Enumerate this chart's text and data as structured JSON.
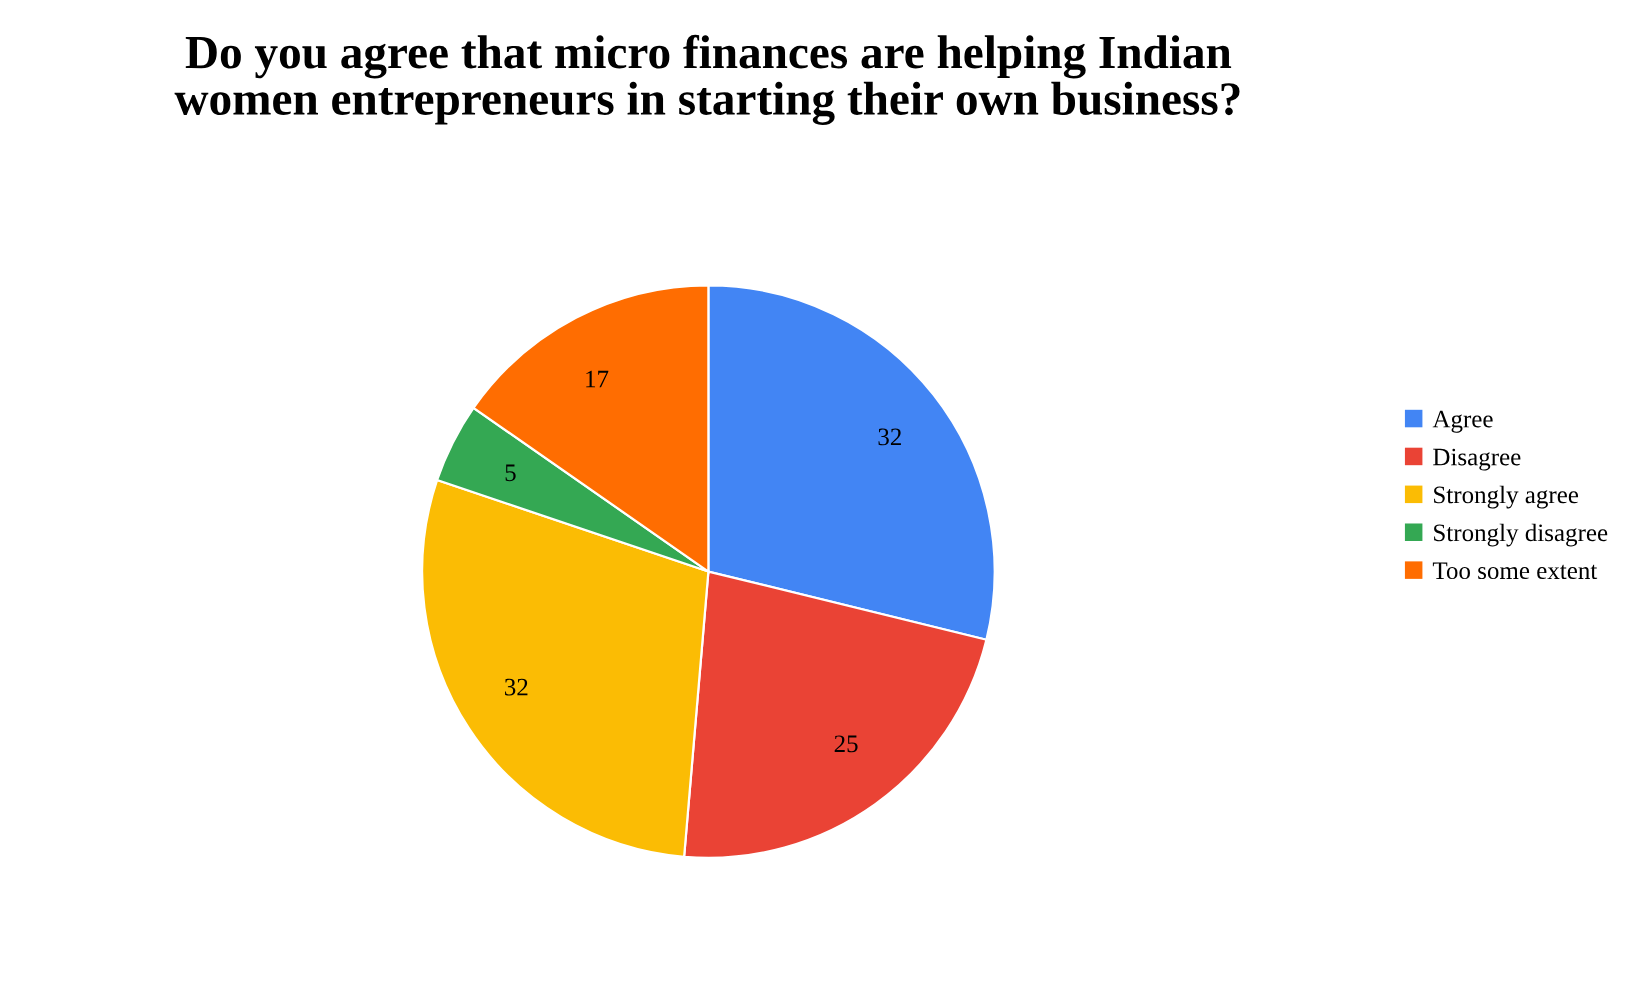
{
  "chart_data": {
    "type": "pie",
    "title": "Do you agree that micro finances are helping Indian\nwomen entrepreneurs in starting their own business?",
    "categories": [
      "Agree",
      "Disagree",
      "Strongly agree",
      "Strongly disagree",
      "Too some extent"
    ],
    "values": [
      32,
      25,
      32,
      5,
      17
    ],
    "colors": [
      "#4285f4",
      "#ea4335",
      "#fbbc04",
      "#34a853",
      "#ff6d01"
    ],
    "data_labels": true,
    "legend": "right"
  }
}
